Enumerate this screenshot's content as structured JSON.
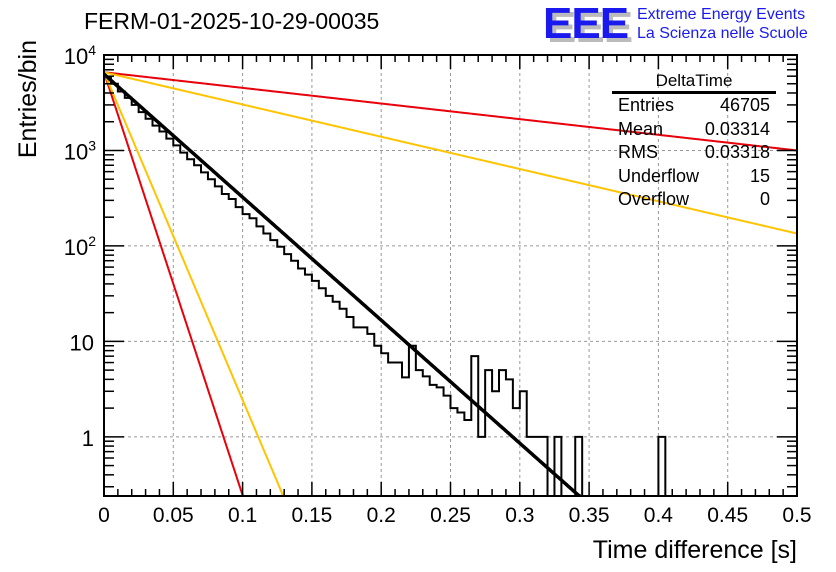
{
  "header": {
    "title": "FERM-01-2025-10-29-00035",
    "logo_mark": "EEE",
    "logo_line1": "Extreme Energy Events",
    "logo_line2": "La Scienza nelle Scuole"
  },
  "stats_box": {
    "name": "DeltaTime",
    "rows": [
      {
        "label": "Entries",
        "value": "46705"
      },
      {
        "label": "Mean",
        "value": "0.03314"
      },
      {
        "label": "RMS",
        "value": "0.03318"
      },
      {
        "label": "Underflow",
        "value": "15"
      },
      {
        "label": "Overflow",
        "value": "0"
      }
    ]
  },
  "chart_data": {
    "type": "histogram",
    "title": "FERM-01-2025-10-29-00035",
    "xlabel": "Time difference [s]",
    "ylabel": "Entries/bin",
    "xlim": [
      0,
      0.5
    ],
    "ylim": [
      0.24,
      10000
    ],
    "yscale": "log",
    "grid": true,
    "x_ticks": [
      "0",
      "0.05",
      "0.1",
      "0.15",
      "0.2",
      "0.25",
      "0.3",
      "0.35",
      "0.4",
      "0.45",
      "0.5"
    ],
    "y_ticks": [
      {
        "value": 1,
        "label": "1"
      },
      {
        "value": 10,
        "label": "10"
      },
      {
        "value": 100,
        "label": "10^2"
      },
      {
        "value": 1000,
        "label": "10^3"
      },
      {
        "value": 10000,
        "label": "10^4"
      }
    ],
    "bin_width": 0.005,
    "bins_low_edge_start": 0,
    "bin_counts": [
      5900,
      5000,
      4150,
      3550,
      3000,
      2520,
      2150,
      1820,
      1580,
      1330,
      1130,
      950,
      810,
      700,
      590,
      500,
      420,
      350,
      310,
      255,
      215,
      195,
      160,
      135,
      115,
      98,
      82,
      70,
      58,
      50,
      43,
      36,
      30,
      26,
      22,
      18,
      14,
      14,
      12,
      9,
      7.5,
      6,
      6,
      4.2,
      9,
      5,
      4.3,
      3.5,
      3.3,
      2.7,
      2,
      1.8,
      1.5,
      7,
      1,
      5,
      3,
      5,
      4,
      2,
      3,
      1,
      1,
      1,
      0,
      1,
      0,
      0,
      1,
      0,
      0,
      0,
      0,
      0,
      0,
      0,
      0,
      0,
      0,
      0,
      1,
      0,
      0,
      0,
      0,
      0,
      0,
      0,
      0,
      0,
      0,
      0,
      0,
      0,
      0,
      0,
      0,
      0,
      0,
      0
    ],
    "series": [
      {
        "name": "fit",
        "color": "#000000",
        "amplitude": 6300,
        "tau": 0.0337
      },
      {
        "name": "red-steep",
        "color": "#e8000b",
        "amplitude": 6600,
        "tau": 0.0098
      },
      {
        "name": "yellow-steep",
        "color": "#ffc400",
        "amplitude": 6600,
        "tau": 0.01265
      },
      {
        "name": "red-shallow",
        "color": "#e8000b",
        "amplitude": 6600,
        "tau": 0.265
      },
      {
        "name": "yellow-shallow",
        "color": "#ffc400",
        "amplitude": 6600,
        "tau": 0.1285
      }
    ]
  }
}
